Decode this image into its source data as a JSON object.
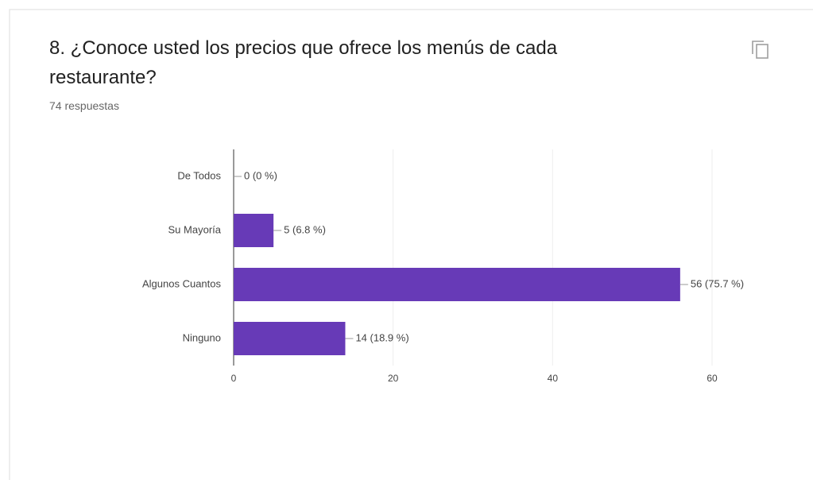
{
  "chart_data": {
    "type": "bar",
    "orientation": "horizontal",
    "title": "8. ¿Conoce usted los precios que ofrece los menús de cada restaurante?",
    "subtitle": "74 respuestas",
    "categories": [
      "De Todos",
      "Su Mayoría",
      "Algunos Cuantos",
      "Ninguno"
    ],
    "values": [
      0,
      5,
      56,
      14
    ],
    "value_labels": [
      "0 (0 %)",
      "5 (6.8 %)",
      "56 (75.7 %)",
      "14 (18.9 %)"
    ],
    "color": "#673ab7",
    "xlim": [
      0,
      60
    ],
    "xticks": [
      0,
      20,
      40,
      60
    ],
    "grid": true
  }
}
